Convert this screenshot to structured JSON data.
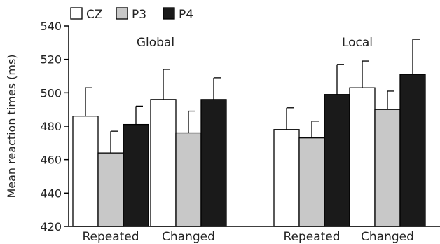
{
  "chart_data": {
    "type": "bar",
    "ylabel": "Mean reaction times (ms)",
    "xlabel": "",
    "ylim": [
      420,
      540
    ],
    "yticks": [
      420,
      440,
      460,
      480,
      500,
      520,
      540
    ],
    "grid": false,
    "legend_position": "top-left",
    "series": [
      {
        "name": "CZ",
        "color": "#ffffff"
      },
      {
        "name": "P3",
        "color": "#c8c8c8"
      },
      {
        "name": "P4",
        "color": "#1a1a1a"
      }
    ],
    "panels": [
      {
        "label": "Global",
        "categories": [
          "Repeated",
          "Changed"
        ],
        "values": {
          "CZ": [
            486,
            496
          ],
          "P3": [
            464,
            476
          ],
          "P4": [
            481,
            496
          ]
        },
        "error_upper": {
          "CZ": [
            503,
            514
          ],
          "P3": [
            477,
            489
          ],
          "P4": [
            492,
            509
          ]
        }
      },
      {
        "label": "Local",
        "categories": [
          "Repeated",
          "Changed"
        ],
        "values": {
          "CZ": [
            478,
            503
          ],
          "P3": [
            473,
            490
          ],
          "P4": [
            499,
            511
          ]
        },
        "error_upper": {
          "CZ": [
            491,
            519
          ],
          "P3": [
            483,
            501
          ],
          "P4": [
            517,
            532
          ]
        }
      }
    ]
  }
}
